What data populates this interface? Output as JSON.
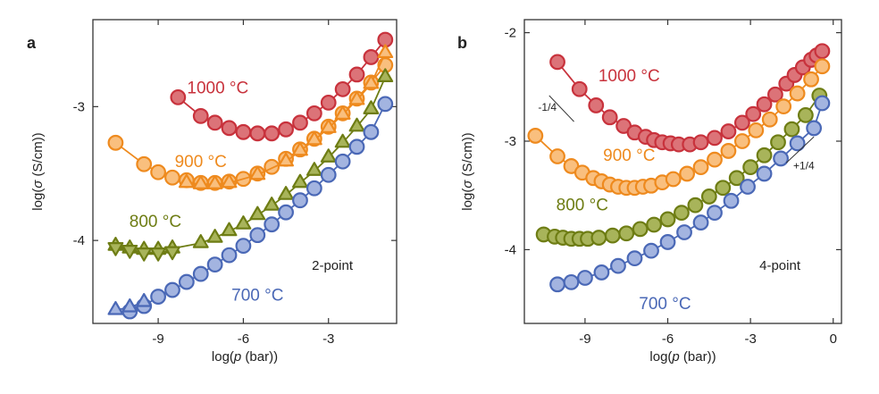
{
  "chart_data": [
    {
      "type": "line",
      "panel": "a",
      "method": "2-point",
      "xlabel_parts": [
        "log(",
        "p",
        " (bar))"
      ],
      "ylabel_parts": [
        "log(",
        "σ",
        " (S/cm))"
      ],
      "xlim": [
        -11.3,
        -0.6
      ],
      "ylim": [
        -4.62,
        -2.35
      ],
      "xticks": [
        -9,
        -6,
        -3
      ],
      "yticks": [
        -4,
        -3
      ],
      "series": [
        {
          "name": "1000 °C",
          "color": "#c8323c",
          "fill": "#dc7378",
          "marker": "circle",
          "x": [
            -8.3,
            -7.5,
            -7.0,
            -6.5,
            -6.0,
            -5.5,
            -5.0,
            -4.5,
            -4.0,
            -3.5,
            -3.0,
            -2.5,
            -2.0,
            -1.5,
            -1.0
          ],
          "y": [
            -2.93,
            -3.07,
            -3.12,
            -3.16,
            -3.19,
            -3.2,
            -3.2,
            -3.17,
            -3.12,
            -3.05,
            -2.97,
            -2.87,
            -2.76,
            -2.63,
            -2.5
          ]
        },
        {
          "name": "900 °C",
          "color": "#ee8a1e",
          "fill": "#f9bf7e",
          "marker": "circle",
          "x": [
            -10.5,
            -9.5,
            -9.0,
            -8.5,
            -8.0,
            -7.5,
            -7.0,
            -6.5,
            -6.0,
            -5.5,
            -5.0,
            -4.5,
            -4.0,
            -3.5,
            -3.0,
            -2.5,
            -2.0,
            -1.5,
            -1.0
          ],
          "y": [
            -3.27,
            -3.43,
            -3.49,
            -3.53,
            -3.55,
            -3.57,
            -3.57,
            -3.56,
            -3.54,
            -3.5,
            -3.45,
            -3.39,
            -3.32,
            -3.24,
            -3.15,
            -3.05,
            -2.94,
            -2.82,
            -2.69
          ]
        },
        {
          "name": "900 °C",
          "color": "#ee8a1e",
          "fill": "#f9bf7e",
          "marker": "triangle",
          "x": [
            -8.0,
            -7.5,
            -7.0,
            -6.5,
            -5.5,
            -4.5,
            -4.0,
            -3.5,
            -3.0,
            -2.5,
            -2.0,
            -1.5,
            -1.0
          ],
          "y": [
            -3.57,
            -3.58,
            -3.58,
            -3.57,
            -3.51,
            -3.41,
            -3.33,
            -3.25,
            -3.16,
            -3.06,
            -2.95,
            -2.83,
            -2.6
          ]
        },
        {
          "name": "800 °C",
          "color": "#6e7d14",
          "fill": "#a8b45a",
          "marker": "triangle",
          "x": [
            -10.5,
            -10.0,
            -9.5,
            -9.0,
            -8.5,
            -7.5,
            -7.0,
            -6.5,
            -6.0,
            -5.5,
            -5.0,
            -4.5,
            -4.0,
            -3.5,
            -3.0,
            -2.5,
            -2.0,
            -1.5,
            -1.0
          ],
          "y": [
            -4.04,
            -4.06,
            -4.07,
            -4.07,
            -4.06,
            -4.02,
            -3.98,
            -3.93,
            -3.88,
            -3.81,
            -3.74,
            -3.66,
            -3.57,
            -3.48,
            -3.38,
            -3.27,
            -3.15,
            -3.02,
            -2.78
          ]
        },
        {
          "name": "800 °C",
          "color": "#6e7d14",
          "fill": "#a8b45a",
          "marker": "triangle-down",
          "x": [
            -10.5,
            -10.0,
            -9.5,
            -9.0,
            -8.5
          ],
          "y": [
            -4.05,
            -4.07,
            -4.09,
            -4.09,
            -4.08
          ]
        },
        {
          "name": "700 °C",
          "color": "#4a68b6",
          "fill": "#a3b4e0",
          "marker": "circle",
          "x": [
            -10.0,
            -9.5,
            -9.0,
            -8.5,
            -8.0,
            -7.5,
            -7.0,
            -6.5,
            -6.0,
            -5.5,
            -5.0,
            -4.5,
            -4.0,
            -3.5,
            -3.0,
            -2.5,
            -2.0,
            -1.5,
            -1.0
          ],
          "y": [
            -4.53,
            -4.49,
            -4.42,
            -4.37,
            -4.31,
            -4.25,
            -4.18,
            -4.11,
            -4.04,
            -3.96,
            -3.88,
            -3.79,
            -3.7,
            -3.61,
            -3.51,
            -3.41,
            -3.3,
            -3.19,
            -2.98
          ]
        },
        {
          "name": "700 °C",
          "color": "#4a68b6",
          "fill": "#a3b4e0",
          "marker": "triangle",
          "x": [
            -10.5,
            -10.0,
            -9.5
          ],
          "y": [
            -4.52,
            -4.5,
            -4.46
          ]
        }
      ],
      "annotations": [
        {
          "text": "1000 °C",
          "x": -6.9,
          "y": -2.9,
          "color": "#c8323c"
        },
        {
          "text": "900 °C",
          "x": -7.5,
          "y": -3.45,
          "color": "#ee8a1e"
        },
        {
          "text": "800 °C",
          "x": -9.1,
          "y": -3.9,
          "color": "#6e7d14"
        },
        {
          "text": "700 °C",
          "x": -5.5,
          "y": -4.45,
          "color": "#4a68b6"
        }
      ]
    },
    {
      "type": "line",
      "panel": "b",
      "method": "4-point",
      "xlabel_parts": [
        "log(",
        "p",
        " (bar))"
      ],
      "ylabel_parts": [
        "log(",
        "σ",
        " (S/cm))"
      ],
      "xlim": [
        -11.2,
        0.3
      ],
      "ylim": [
        -4.68,
        -1.88
      ],
      "xticks": [
        -9,
        -6,
        -3,
        0
      ],
      "yticks": [
        -4,
        -3,
        -2
      ],
      "series": [
        {
          "name": "1000 °C",
          "color": "#c8323c",
          "fill": "#dc7378",
          "marker": "circle",
          "x": [
            -10.0,
            -9.2,
            -8.6,
            -8.1,
            -7.6,
            -7.2,
            -6.8,
            -6.5,
            -6.2,
            -5.9,
            -5.6,
            -5.2,
            -4.8,
            -4.3,
            -3.8,
            -3.3,
            -2.9,
            -2.5,
            -2.1,
            -1.7,
            -1.4,
            -1.1,
            -0.8,
            -0.6,
            -0.4
          ],
          "y": [
            -2.27,
            -2.52,
            -2.67,
            -2.78,
            -2.86,
            -2.92,
            -2.96,
            -2.99,
            -3.01,
            -3.02,
            -3.03,
            -3.03,
            -3.01,
            -2.97,
            -2.91,
            -2.83,
            -2.75,
            -2.66,
            -2.57,
            -2.47,
            -2.39,
            -2.32,
            -2.25,
            -2.21,
            -2.17
          ]
        },
        {
          "name": "900 °C",
          "color": "#ee8a1e",
          "fill": "#f9bf7e",
          "marker": "circle",
          "x": [
            -10.8,
            -10.0,
            -9.5,
            -9.1,
            -8.7,
            -8.4,
            -8.1,
            -7.8,
            -7.5,
            -7.2,
            -6.9,
            -6.6,
            -6.2,
            -5.8,
            -5.3,
            -4.8,
            -4.3,
            -3.8,
            -3.3,
            -2.8,
            -2.3,
            -1.8,
            -1.3,
            -0.8,
            -0.4
          ],
          "y": [
            -2.95,
            -3.14,
            -3.23,
            -3.29,
            -3.34,
            -3.37,
            -3.4,
            -3.42,
            -3.43,
            -3.43,
            -3.42,
            -3.41,
            -3.38,
            -3.35,
            -3.3,
            -3.24,
            -3.17,
            -3.09,
            -3.0,
            -2.9,
            -2.8,
            -2.68,
            -2.56,
            -2.43,
            -2.31
          ]
        },
        {
          "name": "800 °C",
          "color": "#6e7d14",
          "fill": "#a8b45a",
          "marker": "circle",
          "x": [
            -10.5,
            -10.1,
            -9.8,
            -9.5,
            -9.2,
            -8.9,
            -8.5,
            -8.0,
            -7.5,
            -7.0,
            -6.5,
            -6.0,
            -5.5,
            -5.0,
            -4.5,
            -4.0,
            -3.5,
            -3.0,
            -2.5,
            -2.0,
            -1.5,
            -1.0,
            -0.5
          ],
          "y": [
            -3.86,
            -3.88,
            -3.89,
            -3.9,
            -3.9,
            -3.9,
            -3.89,
            -3.87,
            -3.85,
            -3.81,
            -3.77,
            -3.72,
            -3.66,
            -3.59,
            -3.51,
            -3.43,
            -3.34,
            -3.24,
            -3.13,
            -3.01,
            -2.89,
            -2.76,
            -2.58
          ]
        },
        {
          "name": "700 °C",
          "color": "#4a68b6",
          "fill": "#a3b4e0",
          "marker": "circle",
          "x": [
            -10.0,
            -9.5,
            -9.0,
            -8.4,
            -7.8,
            -7.2,
            -6.6,
            -6.0,
            -5.4,
            -4.8,
            -4.3,
            -3.7,
            -3.1,
            -2.5,
            -1.9,
            -1.3,
            -0.7,
            -0.4
          ],
          "y": [
            -4.32,
            -4.3,
            -4.26,
            -4.21,
            -4.15,
            -4.08,
            -4.01,
            -3.93,
            -3.84,
            -3.75,
            -3.66,
            -3.55,
            -3.42,
            -3.3,
            -3.16,
            -3.02,
            -2.88,
            -2.65
          ]
        }
      ],
      "annotations": [
        {
          "text": "1000 °C",
          "x": -7.4,
          "y": -2.45,
          "color": "#c8323c"
        },
        {
          "text": "900 °C",
          "x": -7.4,
          "y": -3.18,
          "color": "#ee8a1e"
        },
        {
          "text": "800 °C",
          "x": -9.1,
          "y": -3.64,
          "color": "#6e7d14"
        },
        {
          "text": "700 °C",
          "x": -6.1,
          "y": -4.55,
          "color": "#4a68b6"
        }
      ],
      "slope_markers": [
        {
          "label": "-1/4",
          "x1": -10.3,
          "y1": -2.58,
          "x2": -9.4,
          "y2": -2.82,
          "label_x": -10.7,
          "label_y": -2.72
        },
        {
          "label": "+1/4",
          "x1": -1.7,
          "y1": -3.2,
          "x2": -0.7,
          "y2": -2.96,
          "label_x": -1.45,
          "label_y": -3.26
        }
      ]
    }
  ]
}
